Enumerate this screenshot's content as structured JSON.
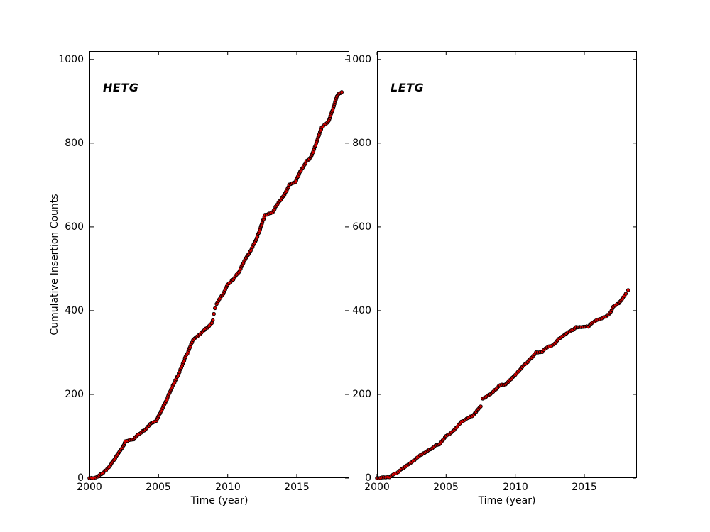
{
  "figure": {
    "background": "#ffffff",
    "frame_color": "#000000",
    "text_color": "#000000"
  },
  "chart_data": {
    "type": "scatter",
    "title": "",
    "marker": {
      "shape": "circle",
      "fill": "#dd0000",
      "edge": "#000000",
      "radius_px": 2.3
    },
    "layout": {
      "grid": false,
      "legend": "none",
      "panel_count": 2
    },
    "panels": [
      {
        "label": "HETG",
        "xlabel": "Time (year)",
        "ylabel": "Cumulative Insertion Counts",
        "xlim": [
          2000,
          2018.8
        ],
        "ylim": [
          0,
          1020
        ],
        "xticks": [
          2000,
          2005,
          2010,
          2015
        ],
        "yticks": [
          0,
          200,
          400,
          600,
          800,
          1000
        ],
        "anchors": [
          [
            2000.0,
            0
          ],
          [
            2000.45,
            1
          ],
          [
            2000.7,
            6
          ],
          [
            2001.0,
            13
          ],
          [
            2001.5,
            30
          ],
          [
            2002.0,
            55
          ],
          [
            2002.45,
            76
          ],
          [
            2002.6,
            88
          ],
          [
            2003.2,
            93
          ],
          [
            2003.5,
            103
          ],
          [
            2003.85,
            112
          ],
          [
            2004.05,
            115
          ],
          [
            2004.3,
            126
          ],
          [
            2004.6,
            134
          ],
          [
            2004.85,
            137
          ],
          [
            2005.0,
            148
          ],
          [
            2005.3,
            168
          ],
          [
            2005.6,
            188
          ],
          [
            2005.9,
            212
          ],
          [
            2006.15,
            228
          ],
          [
            2006.4,
            245
          ],
          [
            2006.7,
            268
          ],
          [
            2006.95,
            290
          ],
          [
            2007.15,
            302
          ],
          [
            2007.35,
            320
          ],
          [
            2007.5,
            330
          ],
          [
            2008.1,
            347
          ],
          [
            2008.4,
            356
          ],
          [
            2008.65,
            363
          ],
          [
            2008.85,
            371
          ],
          [
            2008.92,
            377
          ],
          [
            2009.0,
            392
          ],
          [
            2009.08,
            406
          ],
          [
            2009.2,
            416
          ],
          [
            2009.4,
            428
          ],
          [
            2009.7,
            441
          ],
          [
            2010.0,
            462
          ],
          [
            2010.4,
            475
          ],
          [
            2010.8,
            492
          ],
          [
            2011.2,
            518
          ],
          [
            2011.6,
            540
          ],
          [
            2012.0,
            565
          ],
          [
            2012.3,
            590
          ],
          [
            2012.55,
            615
          ],
          [
            2012.7,
            628
          ],
          [
            2013.25,
            635
          ],
          [
            2013.6,
            655
          ],
          [
            2014.1,
            676
          ],
          [
            2014.45,
            700
          ],
          [
            2014.9,
            708
          ],
          [
            2015.3,
            735
          ],
          [
            2015.7,
            757
          ],
          [
            2016.0,
            765
          ],
          [
            2016.3,
            790
          ],
          [
            2016.6,
            818
          ],
          [
            2016.8,
            838
          ],
          [
            2017.3,
            852
          ],
          [
            2017.6,
            881
          ],
          [
            2017.9,
            912
          ],
          [
            2018.05,
            918
          ],
          [
            2018.25,
            921
          ]
        ],
        "sparse_ranges": [
          [
            2008.86,
            2009.14
          ]
        ]
      },
      {
        "label": "LETG",
        "xlabel": "Time (year)",
        "ylabel": "",
        "xlim": [
          2000,
          2018.8
        ],
        "ylim": [
          0,
          1020
        ],
        "xticks": [
          2000,
          2005,
          2010,
          2015
        ],
        "yticks": [
          0,
          200,
          400,
          600,
          800,
          1000
        ],
        "anchors": [
          [
            2000.0,
            0
          ],
          [
            2000.5,
            1
          ],
          [
            2000.9,
            3
          ],
          [
            2001.4,
            12
          ],
          [
            2001.9,
            24
          ],
          [
            2002.4,
            35
          ],
          [
            2002.9,
            49
          ],
          [
            2003.45,
            61
          ],
          [
            2004.0,
            72
          ],
          [
            2004.25,
            78
          ],
          [
            2004.5,
            80
          ],
          [
            2005.0,
            100
          ],
          [
            2005.5,
            112
          ],
          [
            2006.1,
            134
          ],
          [
            2007.0,
            151
          ],
          [
            2007.5,
            172
          ],
          [
            2007.65,
            190
          ],
          [
            2008.2,
            200
          ],
          [
            2008.7,
            216
          ],
          [
            2008.9,
            222
          ],
          [
            2009.3,
            224
          ],
          [
            2009.6,
            233
          ],
          [
            2010.1,
            250
          ],
          [
            2010.4,
            261
          ],
          [
            2010.9,
            278
          ],
          [
            2011.4,
            295
          ],
          [
            2011.5,
            300
          ],
          [
            2011.95,
            302
          ],
          [
            2012.3,
            312
          ],
          [
            2012.75,
            318
          ],
          [
            2013.25,
            335
          ],
          [
            2013.7,
            346
          ],
          [
            2014.2,
            355
          ],
          [
            2014.4,
            360
          ],
          [
            2015.3,
            362
          ],
          [
            2015.6,
            372
          ],
          [
            2016.1,
            380
          ],
          [
            2016.55,
            386
          ],
          [
            2016.85,
            394
          ],
          [
            2017.1,
            409
          ],
          [
            2017.5,
            418
          ],
          [
            2017.8,
            431
          ],
          [
            2018.0,
            440
          ],
          [
            2018.17,
            449
          ]
        ],
        "sparse_ranges": [
          [
            2007.51,
            2007.64
          ],
          [
            2018.01,
            2018.16
          ]
        ]
      }
    ]
  }
}
